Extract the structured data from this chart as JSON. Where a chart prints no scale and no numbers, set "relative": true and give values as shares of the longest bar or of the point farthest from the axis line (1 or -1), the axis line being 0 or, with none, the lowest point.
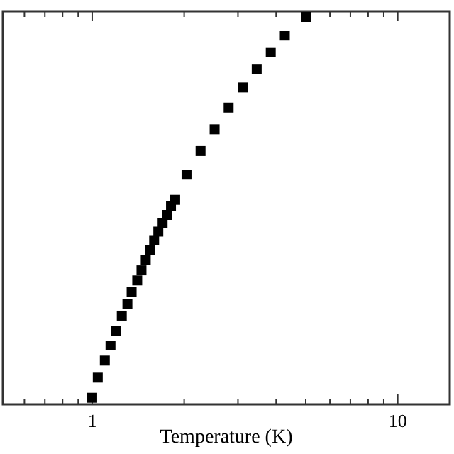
{
  "chart_data": {
    "type": "scatter",
    "xlabel": "Temperature (K)",
    "log": "x",
    "relative": true,
    "marker": "square",
    "xlim": [
      0.51,
      14.8
    ],
    "xticks": [
      {
        "value": 0.6,
        "label": null
      },
      {
        "value": 0.7,
        "label": null
      },
      {
        "value": 0.8,
        "label": null
      },
      {
        "value": 0.9,
        "label": null
      },
      1,
      {
        "value": 2,
        "label": null
      },
      {
        "value": 3,
        "label": null
      },
      {
        "value": 4,
        "label": null
      },
      {
        "value": 5,
        "label": null
      },
      {
        "value": 6,
        "label": null
      },
      {
        "value": 7,
        "label": null
      },
      {
        "value": 8,
        "label": null
      },
      {
        "value": 9,
        "label": null
      },
      10
    ],
    "series": [
      {
        "color": "#000000",
        "x": [
          1.0,
          1.043,
          1.1,
          1.148,
          1.198,
          1.25,
          1.304,
          1.346,
          1.404,
          1.45,
          1.497,
          1.545,
          1.595,
          1.646,
          1.7,
          1.755,
          1.811,
          1.869,
          2.036,
          2.263,
          2.516,
          2.796,
          3.108,
          3.455,
          3.841,
          4.27,
          5.01
        ],
        "values": [
          0.017,
          0.069,
          0.113,
          0.152,
          0.19,
          0.229,
          0.26,
          0.29,
          0.32,
          0.346,
          0.372,
          0.398,
          0.424,
          0.446,
          0.468,
          0.489,
          0.511,
          0.528,
          0.593,
          0.654,
          0.71,
          0.766,
          0.818,
          0.866,
          0.909,
          0.952,
          1.0
        ]
      }
    ]
  }
}
